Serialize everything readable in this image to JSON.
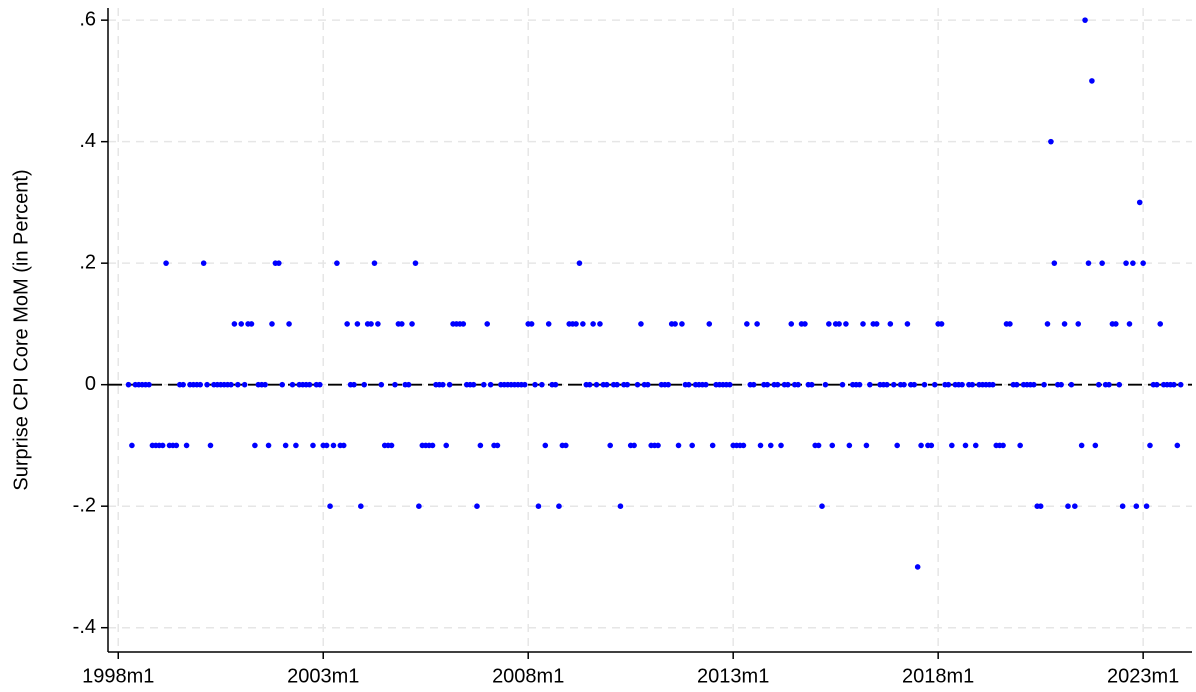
{
  "chart_data": {
    "type": "scatter",
    "ylabel": "Surprise CPI Core MoM (in Percent)",
    "color": "#0000ff",
    "grid": true,
    "reference_line": 0,
    "xlim": [
      453,
      770.3
    ],
    "ylim": [
      -0.44,
      0.62
    ],
    "xticks": [
      {
        "value": 456,
        "label": "1998m1"
      },
      {
        "value": 516,
        "label": "2003m1"
      },
      {
        "value": 576,
        "label": "2008m1"
      },
      {
        "value": 636,
        "label": "2013m1"
      },
      {
        "value": 696,
        "label": "2018m1"
      },
      {
        "value": 756,
        "label": "2023m1"
      }
    ],
    "yticks": [
      {
        "value": -0.4,
        "label": "-.4"
      },
      {
        "value": -0.2,
        "label": "-.2"
      },
      0,
      {
        "value": 0.2,
        "label": ".2"
      },
      {
        "value": 0.4,
        "label": ".4"
      },
      {
        "value": 0.6,
        "label": ".6"
      }
    ],
    "x": [
      459,
      460,
      461,
      462,
      463,
      464,
      465,
      466,
      467,
      468,
      469,
      470,
      471,
      472,
      473,
      474,
      475,
      476,
      477,
      478,
      479,
      480,
      481,
      482,
      483,
      484,
      485,
      486,
      487,
      488,
      489,
      490,
      491,
      492,
      493,
      494,
      495,
      496,
      497,
      498,
      499,
      500,
      501,
      502,
      503,
      504,
      505,
      506,
      507,
      508,
      509,
      510,
      511,
      512,
      513,
      514,
      515,
      516,
      517,
      518,
      519,
      520,
      521,
      522,
      523,
      524,
      525,
      526,
      527,
      528,
      529,
      530,
      531,
      532,
      533,
      534,
      535,
      536,
      537,
      538,
      539,
      540,
      541,
      542,
      543,
      544,
      545,
      546,
      547,
      548,
      549,
      550,
      551,
      552,
      553,
      554,
      555,
      556,
      557,
      558,
      559,
      560,
      561,
      562,
      563,
      564,
      565,
      566,
      567,
      568,
      569,
      570,
      571,
      572,
      573,
      574,
      575,
      576,
      577,
      578,
      579,
      580,
      581,
      582,
      583,
      584,
      585,
      586,
      587,
      588,
      589,
      590,
      591,
      592,
      593,
      594,
      595,
      596,
      597,
      598,
      599,
      600,
      601,
      602,
      603,
      604,
      605,
      606,
      607,
      608,
      609,
      610,
      611,
      612,
      613,
      614,
      615,
      616,
      617,
      618,
      619,
      620,
      621,
      622,
      623,
      624,
      625,
      626,
      627,
      628,
      629,
      630,
      631,
      632,
      633,
      634,
      635,
      636,
      637,
      638,
      639,
      640,
      641,
      642,
      643,
      644,
      645,
      646,
      647,
      648,
      649,
      650,
      651,
      652,
      653,
      654,
      655,
      656,
      657,
      658,
      659,
      660,
      661,
      662,
      663,
      664,
      665,
      666,
      667,
      668,
      669,
      670,
      671,
      672,
      673,
      674,
      675,
      676,
      677,
      678,
      679,
      680,
      681,
      682,
      683,
      684,
      685,
      686,
      687,
      688,
      689,
      690,
      691,
      692,
      693,
      694,
      695,
      696,
      697,
      698,
      699,
      700,
      701,
      702,
      703,
      704,
      705,
      706,
      707,
      708,
      709,
      710,
      711,
      712,
      713,
      714,
      715,
      716,
      717,
      718,
      719,
      720,
      721,
      722,
      723,
      724,
      725,
      726,
      727,
      728,
      729,
      730,
      731,
      732,
      733,
      734,
      735,
      736,
      737,
      738,
      739,
      740,
      741,
      742,
      743,
      744,
      745,
      746,
      747,
      748,
      749,
      750,
      751,
      752,
      753,
      754,
      755,
      756,
      757,
      758,
      759,
      760,
      761,
      762,
      763,
      764,
      765,
      766,
      767
    ],
    "values": [
      0,
      -0.1,
      0,
      0,
      0,
      0,
      0,
      -0.1,
      -0.1,
      -0.1,
      -0.1,
      0.2,
      -0.1,
      -0.1,
      -0.1,
      0,
      0,
      -0.1,
      0,
      0,
      0,
      0,
      0.2,
      0,
      -0.1,
      0,
      0,
      0,
      0,
      0,
      0,
      0.1,
      0,
      0.1,
      0,
      0.1,
      0.1,
      -0.1,
      0,
      0,
      0,
      -0.1,
      0.1,
      0.2,
      0.2,
      0,
      -0.1,
      0.1,
      0,
      -0.1,
      0,
      0,
      0,
      0,
      -0.1,
      0,
      0,
      -0.1,
      -0.1,
      -0.2,
      -0.1,
      0.2,
      -0.1,
      -0.1,
      0.1,
      0,
      0,
      0.1,
      -0.2,
      0,
      0.1,
      0.1,
      0.2,
      0.1,
      0,
      -0.1,
      -0.1,
      -0.1,
      0,
      0.1,
      0.1,
      0,
      0,
      0.1,
      0.2,
      -0.2,
      -0.1,
      -0.1,
      -0.1,
      -0.1,
      0,
      0,
      0,
      -0.1,
      0,
      0.1,
      0.1,
      0.1,
      0.1,
      0,
      0,
      0,
      -0.2,
      -0.1,
      0,
      0.1,
      0,
      -0.1,
      -0.1,
      0,
      0,
      0,
      0,
      0,
      0,
      0,
      0,
      0.1,
      0.1,
      0,
      -0.2,
      0,
      -0.1,
      0.1,
      0,
      0,
      -0.2,
      -0.1,
      -0.1,
      0.1,
      0.1,
      0.1,
      0.2,
      0.1,
      0,
      0,
      0.1,
      0,
      0.1,
      0,
      0,
      -0.1,
      0,
      0,
      -0.2,
      0,
      0,
      -0.1,
      -0.1,
      0,
      0.1,
      0,
      0,
      -0.1,
      -0.1,
      -0.1,
      0,
      0,
      0,
      0.1,
      0.1,
      -0.1,
      0.1,
      0,
      0,
      -0.1,
      0,
      0,
      0,
      0,
      0.1,
      -0.1,
      0,
      0,
      0,
      0,
      0,
      -0.1,
      -0.1,
      -0.1,
      -0.1,
      0.1,
      0,
      0,
      0.1,
      -0.1,
      0,
      0,
      -0.1,
      0,
      0,
      -0.1,
      0,
      0,
      0.1,
      0,
      0,
      0.1,
      0.1,
      0,
      0,
      -0.1,
      -0.1,
      -0.2,
      0,
      0.1,
      -0.1,
      0.1,
      0.1,
      0,
      0.1,
      -0.1,
      0,
      0,
      0,
      0.1,
      -0.1,
      0,
      0.1,
      0.1,
      0,
      0,
      0,
      0.1,
      0,
      -0.1,
      0,
      0,
      0.1,
      0,
      0,
      -0.3,
      -0.1,
      0,
      -0.1,
      -0.1,
      0,
      0.1,
      0.1,
      0,
      0,
      -0.1,
      0,
      0,
      0,
      -0.1,
      0,
      0,
      -0.1,
      0,
      0,
      0,
      0,
      0,
      -0.1,
      -0.1,
      -0.1,
      0.1,
      0.1,
      0,
      0,
      -0.1,
      0,
      0,
      0,
      0,
      -0.2,
      -0.2,
      0,
      0.1,
      0.4,
      0.2,
      0,
      0,
      0.1,
      -0.2,
      0,
      -0.2,
      0.1,
      -0.1,
      0.6,
      0.2,
      0.5,
      -0.1,
      0,
      0.2,
      0,
      0,
      0.1,
      0.1,
      0,
      -0.2,
      0.2,
      0.1,
      0.2,
      -0.2,
      0.3,
      0.2,
      -0.2,
      -0.1,
      0,
      0,
      0.1,
      0,
      0,
      0,
      0,
      -0.1,
      0
    ]
  }
}
